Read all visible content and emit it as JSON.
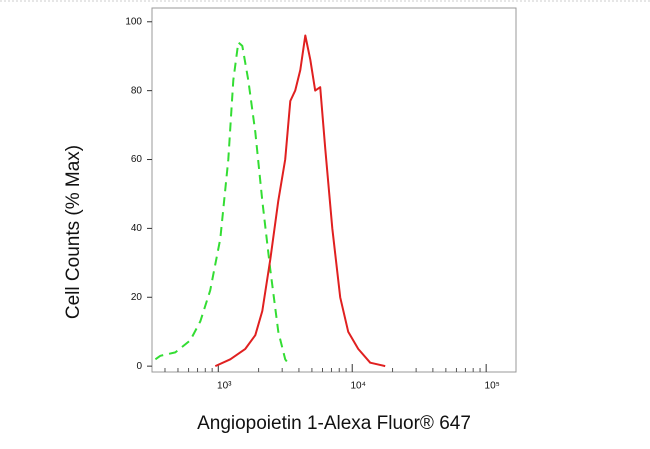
{
  "chart_data": {
    "type": "line",
    "xlabel": "Angiopoietin 1-Alexa Fluor® 647",
    "ylabel": "Cell Counts (% Max)",
    "xscale": "log",
    "xlim": [
      320,
      167000
    ],
    "ylim": [
      -1.7,
      104
    ],
    "xticks": [
      {
        "value": 1000,
        "label": "10³"
      },
      {
        "value": 10000,
        "label": "10⁴"
      },
      {
        "value": 100000,
        "label": "10⁵"
      }
    ],
    "yticks": [
      0,
      20,
      40,
      60,
      80,
      100
    ],
    "series": [
      {
        "color": "#33dd33",
        "dash": true,
        "x": [
          339,
          369,
          478,
          618,
          734,
          871,
          1035,
          1188,
          1294,
          1410,
          1510,
          1674,
          1888,
          2130,
          2445,
          2805,
          3162,
          3446
        ],
        "values": [
          2,
          3,
          4,
          7.5,
          13,
          22,
          37,
          60,
          83,
          94,
          93,
          83,
          68,
          48,
          28,
          10,
          2,
          0
        ]
      },
      {
        "color": "#e02020",
        "dash": false,
        "x": [
          950,
          1230,
          1590,
          1888,
          2130,
          2445,
          2805,
          3162,
          3446,
          3755,
          4093,
          4460,
          4860,
          5296,
          5771,
          6290,
          7100,
          8130,
          9335,
          11090,
          13620,
          17630
        ],
        "values": [
          0,
          2,
          5,
          9,
          16,
          31,
          48,
          60,
          77,
          80,
          86,
          96,
          89,
          80,
          81,
          63,
          40,
          20,
          10,
          5,
          1,
          0
        ]
      }
    ]
  }
}
